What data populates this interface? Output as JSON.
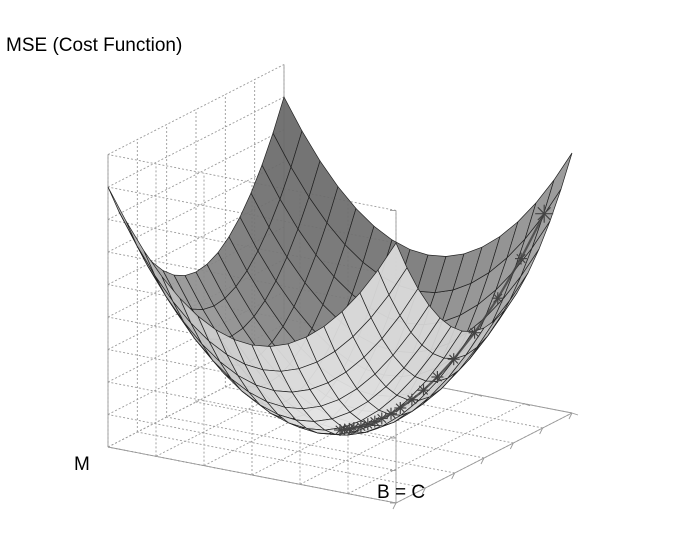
{
  "chart_data": {
    "type": "surface",
    "title": "",
    "zlabel": "MSE (Cost Function)",
    "xlabel": "B = C",
    "ylabel": "M",
    "surface": {
      "function": "z = x^2 + y^2",
      "x_range": [
        -1,
        1
      ],
      "y_range": [
        -1,
        1
      ],
      "grid_lines": 17,
      "shading": "grayscale"
    },
    "descent_path": {
      "marker": "*",
      "points": [
        [
          0.88,
          -0.88
        ],
        [
          0.78,
          -0.78
        ],
        [
          0.68,
          -0.68
        ],
        [
          0.58,
          -0.58
        ],
        [
          0.49,
          -0.49
        ],
        [
          0.42,
          -0.42
        ],
        [
          0.36,
          -0.36
        ],
        [
          0.31,
          -0.31
        ],
        [
          0.26,
          -0.26
        ],
        [
          0.22,
          -0.22
        ],
        [
          0.18,
          -0.18
        ],
        [
          0.15,
          -0.15
        ],
        [
          0.12,
          -0.12
        ],
        [
          0.09,
          -0.09
        ],
        [
          0.06,
          -0.06
        ],
        [
          0.04,
          -0.04
        ],
        [
          0.02,
          -0.02
        ],
        [
          0.0,
          0.0
        ]
      ]
    },
    "grid": true,
    "colors": {
      "surface_light": "#f0f0f0",
      "surface_dark": "#555555",
      "mesh": "#222222",
      "grid": "#9a9a9a",
      "path": "#444444"
    }
  }
}
